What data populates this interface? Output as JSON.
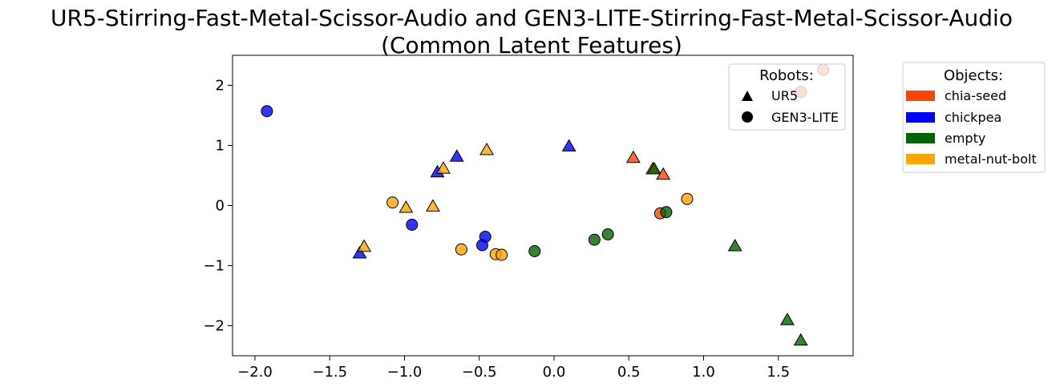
{
  "chart_data": {
    "type": "scatter",
    "title": "UR5-Stirring-Fast-Metal-Scissor-Audio and GEN3-LITE-Stirring-Fast-Metal-Scissor-Audio",
    "subtitle": "(Common Latent Features)",
    "xlabel": "",
    "ylabel": "",
    "xlim": [
      -2.15,
      2.0
    ],
    "ylim": [
      -2.5,
      2.5
    ],
    "xticks": [
      -2.0,
      -1.5,
      -1.0,
      -0.5,
      0.0,
      0.5,
      1.0,
      1.5
    ],
    "xtick_labels": [
      "−2.0",
      "−1.5",
      "−1.0",
      "−0.5",
      "0.0",
      "0.5",
      "1.0",
      "1.5"
    ],
    "yticks": [
      2,
      1,
      0,
      -1,
      -2
    ],
    "ytick_labels": [
      "2",
      "1",
      "0",
      "−1",
      "−2"
    ],
    "grid": false,
    "robot_legend": {
      "title": "Robots:",
      "placement": "top-right inside plot",
      "entries": [
        {
          "label": "UR5",
          "marker": "triangle"
        },
        {
          "label": "GEN3-LITE",
          "marker": "circle"
        }
      ]
    },
    "object_legend": {
      "title": "Objects:",
      "placement": "outside right",
      "entries": [
        {
          "label": "chia-seed",
          "color": "#ff4500"
        },
        {
          "label": "chickpea",
          "color": "#0000ff"
        },
        {
          "label": "empty",
          "color": "#006400"
        },
        {
          "label": "metal-nut-bolt",
          "color": "#ffa500"
        }
      ]
    },
    "points": [
      {
        "x": -1.92,
        "y": 1.57,
        "robot": "GEN3-LITE",
        "object": "chickpea"
      },
      {
        "x": 1.8,
        "y": 2.26,
        "robot": "GEN3-LITE",
        "object": "chia-seed"
      },
      {
        "x": 1.65,
        "y": 1.89,
        "robot": "GEN3-LITE",
        "object": "chia-seed"
      },
      {
        "x": -0.95,
        "y": -0.32,
        "robot": "GEN3-LITE",
        "object": "chickpea"
      },
      {
        "x": -0.48,
        "y": -0.66,
        "robot": "GEN3-LITE",
        "object": "chickpea"
      },
      {
        "x": -0.46,
        "y": -0.52,
        "robot": "GEN3-LITE",
        "object": "chickpea"
      },
      {
        "x": -1.08,
        "y": 0.05,
        "robot": "GEN3-LITE",
        "object": "metal-nut-bolt"
      },
      {
        "x": -0.62,
        "y": -0.73,
        "robot": "GEN3-LITE",
        "object": "metal-nut-bolt"
      },
      {
        "x": -0.39,
        "y": -0.81,
        "robot": "GEN3-LITE",
        "object": "metal-nut-bolt"
      },
      {
        "x": -0.35,
        "y": -0.82,
        "robot": "GEN3-LITE",
        "object": "metal-nut-bolt"
      },
      {
        "x": -0.13,
        "y": -0.76,
        "robot": "GEN3-LITE",
        "object": "empty"
      },
      {
        "x": 0.27,
        "y": -0.57,
        "robot": "GEN3-LITE",
        "object": "empty"
      },
      {
        "x": 0.36,
        "y": -0.48,
        "robot": "GEN3-LITE",
        "object": "empty"
      },
      {
        "x": 0.71,
        "y": -0.13,
        "robot": "GEN3-LITE",
        "object": "chia-seed"
      },
      {
        "x": 0.75,
        "y": -0.11,
        "robot": "GEN3-LITE",
        "object": "empty"
      },
      {
        "x": 0.89,
        "y": 0.11,
        "robot": "GEN3-LITE",
        "object": "metal-nut-bolt"
      },
      {
        "x": -1.3,
        "y": -0.8,
        "robot": "UR5",
        "object": "chickpea"
      },
      {
        "x": -1.27,
        "y": -0.69,
        "robot": "UR5",
        "object": "metal-nut-bolt"
      },
      {
        "x": -0.99,
        "y": -0.04,
        "robot": "UR5",
        "object": "metal-nut-bolt"
      },
      {
        "x": -0.81,
        "y": -0.02,
        "robot": "UR5",
        "object": "metal-nut-bolt"
      },
      {
        "x": -0.78,
        "y": 0.55,
        "robot": "UR5",
        "object": "chickpea"
      },
      {
        "x": -0.74,
        "y": 0.61,
        "robot": "UR5",
        "object": "metal-nut-bolt"
      },
      {
        "x": -0.65,
        "y": 0.81,
        "robot": "UR5",
        "object": "chickpea"
      },
      {
        "x": -0.45,
        "y": 0.92,
        "robot": "UR5",
        "object": "metal-nut-bolt"
      },
      {
        "x": 0.1,
        "y": 0.98,
        "robot": "UR5",
        "object": "chickpea"
      },
      {
        "x": 0.53,
        "y": 0.79,
        "robot": "UR5",
        "object": "chia-seed"
      },
      {
        "x": 0.66,
        "y": 0.6,
        "robot": "UR5",
        "object": "chia-seed"
      },
      {
        "x": 0.67,
        "y": 0.6,
        "robot": "UR5",
        "object": "empty"
      },
      {
        "x": 0.73,
        "y": 0.51,
        "robot": "UR5",
        "object": "chia-seed"
      },
      {
        "x": 1.21,
        "y": -0.68,
        "robot": "UR5",
        "object": "empty"
      },
      {
        "x": 1.56,
        "y": -1.91,
        "robot": "UR5",
        "object": "empty"
      },
      {
        "x": 1.65,
        "y": -2.25,
        "robot": "UR5",
        "object": "empty"
      }
    ]
  }
}
